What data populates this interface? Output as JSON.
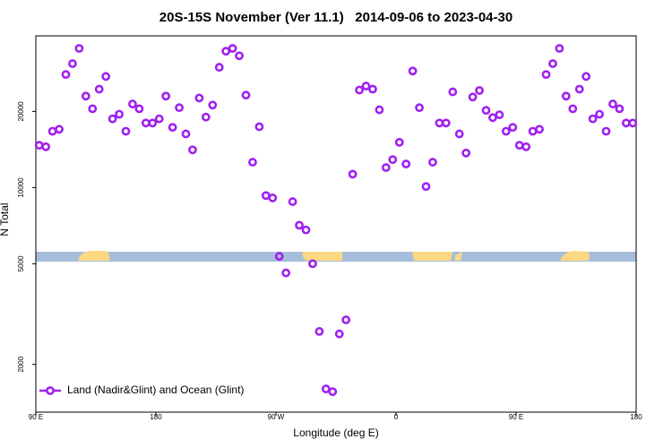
{
  "chart_data": {
    "type": "scatter",
    "title": "20S-15S November (Ver 11.1)   2014-09-06 to 2023-04-30",
    "x_label": "Longitude (deg E)",
    "y_label": "N Total",
    "log_y": true,
    "legend_position": "bottom-left",
    "xlim": [
      90,
      540
    ],
    "xticks": [
      {
        "value": 90,
        "label": "90 E"
      },
      {
        "value": 180,
        "label": "180"
      },
      {
        "value": 270,
        "label": "90 W"
      },
      {
        "value": 360,
        "label": "0"
      },
      {
        "value": 450,
        "label": "90 E"
      },
      {
        "value": 540,
        "label": "180"
      }
    ],
    "ylim": [
      1295,
      39800
    ],
    "yticks": [
      2000,
      5000,
      10000,
      20000
    ],
    "x": [
      92.5,
      97.5,
      102.5,
      107.5,
      112.5,
      117.5,
      122.5,
      127.5,
      132.5,
      137.5,
      142.5,
      147.5,
      152.5,
      157.5,
      162.5,
      167.5,
      172.5,
      177.5,
      182.5,
      187.5,
      192.5,
      197.5,
      202.5,
      207.5,
      212.5,
      217.5,
      222.5,
      227.5,
      232.5,
      237.5,
      242.5,
      247.5,
      252.5,
      257.5,
      262.5,
      267.5,
      272.5,
      277.5,
      282.5,
      287.5,
      292.5,
      297.5,
      302.5,
      307.5,
      312.5,
      317.5,
      322.5,
      327.5,
      332.5,
      337.5,
      342.5,
      347.5,
      352.5,
      357.5,
      362.5,
      367.5,
      372.5,
      377.5,
      382.5,
      387.5,
      392.5,
      397.5,
      402.5,
      407.5,
      412.5,
      417.5,
      422.5,
      427.5,
      432.5,
      437.5,
      442.5,
      447.5,
      452.5,
      457.5,
      462.5,
      467.5,
      472.5,
      477.5,
      482.5,
      487.5,
      492.5,
      497.5,
      502.5,
      507.5,
      512.5,
      517.5,
      522.5,
      527.5,
      532.5,
      537.5
    ],
    "series": [
      {
        "name": "Land (Nadir&Glint) and Ocean (Glint)",
        "color": "#a020f0",
        "values": [
          14700,
          14500,
          16700,
          17000,
          28000,
          30900,
          35500,
          23000,
          20500,
          24500,
          27500,
          18700,
          19500,
          16700,
          21400,
          20500,
          18000,
          18000,
          18700,
          23000,
          17300,
          20700,
          16300,
          14100,
          22600,
          19000,
          21200,
          29900,
          34600,
          35500,
          33200,
          23200,
          12600,
          17400,
          9300,
          9100,
          5350,
          4600,
          8800,
          7100,
          6800,
          5000,
          2700,
          1600,
          1560,
          2640,
          3000,
          11300,
          24300,
          25200,
          24500,
          20300,
          12000,
          12900,
          15100,
          12400,
          28900,
          20700,
          10100,
          12600,
          18000,
          18000,
          23900,
          16300,
          13700,
          22800,
          24200,
          20200,
          18900,
          19400,
          16700,
          17300,
          14700,
          14500,
          16700,
          17000,
          28000,
          30900,
          35500,
          23000,
          20500,
          24500,
          27500,
          18700,
          19500,
          16700,
          21400,
          20500,
          18000,
          18000
        ]
      }
    ]
  }
}
